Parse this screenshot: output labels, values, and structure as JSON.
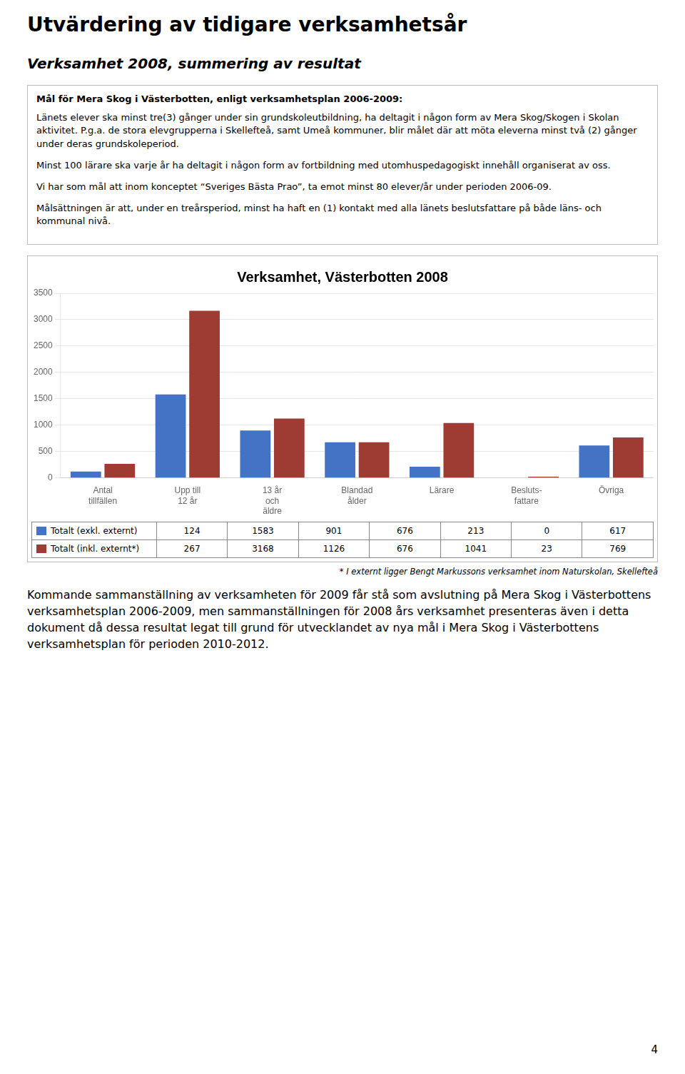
{
  "page_title": "Utvärdering av tidigare verksamhetsår",
  "page_subtitle": "Verksamhet 2008, summering av resultat",
  "box_bold_line": "Mål för Mera Skog i Västerbotten, enligt verksamhetsplan 2006-2009:",
  "box_paragraphs": [
    "Länets elever ska minst tre(3) gånger under sin grundskoleutbildning, ha deltagit i någon form av Mera Skog/Skogen i Skolan aktivitet. P.g.a. de stora elevgrupperna i Skellefteå, samt Umeå kommuner, blir målet där att möta eleverna minst två (2) gånger under deras grundskoleperiod.",
    "Minst 100 lärare ska varje år ha deltagit i någon form av fortbildning med utomhuspedagogiskt innehåll organiserat av oss.",
    "Vi har som mål att inom konceptet “Sveriges Bästa Prao”, ta emot minst 80 elever/år under perioden 2006-09.",
    "Målsättningen är att, under en treårsperiod, minst ha haft en (1) kontakt med alla länets beslutsfattare på både läns- och kommunal nivå."
  ],
  "footnote": "* I externt ligger Bengt Markussons verksamhet inom Naturskolan, Skellefteå",
  "bottom_text": "Kommande sammanställning av verksamheten för 2009 får stå som avslutning på Mera Skog i Västerbottens verksamhetsplan 2006-2009, men sammanställningen för 2008 års verksamhet presenteras även i detta dokument då dessa resultat legat till grund för utvecklandet av nya mål i Mera Skog i Västerbottens verksamhetsplan för perioden 2010-2012.",
  "page_number": "4",
  "chart_data": {
    "type": "bar",
    "title": "Verksamhet, Västerbotten 2008",
    "categories": [
      "Antal\ntillfällen",
      "Upp till\n12 år",
      "13 år\noch\näldre",
      "Blandad\nålder",
      "Lärare",
      "Besluts-\nfattare",
      "Övriga"
    ],
    "series": [
      {
        "name": "Totalt  (exkl. externt)",
        "color": "#4472C4",
        "values": [
          124,
          1583,
          901,
          676,
          213,
          0,
          617
        ]
      },
      {
        "name": "Totalt  (inkl. externt*)",
        "color": "#9E3B32",
        "values": [
          267,
          3168,
          1126,
          676,
          1041,
          23,
          769
        ]
      }
    ],
    "ylim": [
      0,
      3500
    ],
    "yticks": [
      0,
      500,
      1000,
      1500,
      2000,
      2500,
      3000,
      3500
    ],
    "grid": true
  }
}
